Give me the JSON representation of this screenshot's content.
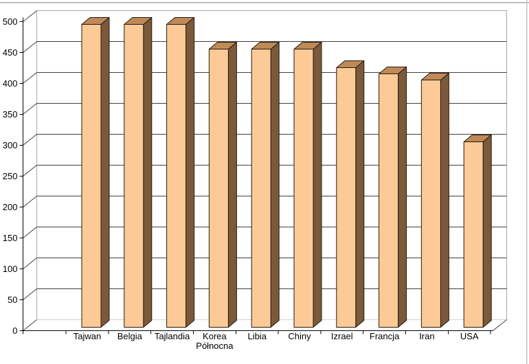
{
  "window": {
    "background": "#ffffff",
    "frame_top_color": "#ababab",
    "frame_right_color": "#c4c4c4"
  },
  "chart_data": {
    "type": "bar",
    "projection": "3d",
    "title": "",
    "xlabel": "",
    "ylabel": "",
    "categories": [
      "Tajwan",
      "Belgia",
      "Tajlandia",
      "Korea Północna",
      "Libia",
      "Chiny",
      "Izrael",
      "Francja",
      "Iran",
      "USA"
    ],
    "values": [
      490,
      490,
      490,
      450,
      450,
      450,
      420,
      410,
      400,
      300
    ],
    "ylim": [
      0,
      500
    ],
    "ytick_interval": 50,
    "ytick_labels": [
      "0",
      "50",
      "100",
      "150",
      "200",
      "250",
      "300",
      "350",
      "400",
      "450",
      "500"
    ],
    "grid": true,
    "legend": false,
    "colors": {
      "bar_front": "#fbca96",
      "bar_top": "#be8a58",
      "bar_side": "#7a5a3b",
      "bar_outline": "#26190d",
      "gridline": "#3f3f3f",
      "wall_border": "#a9a9a9",
      "wall_fill": "#ffffff",
      "axis": "#000000",
      "text": "#000000",
      "background": "#ffffff"
    }
  }
}
